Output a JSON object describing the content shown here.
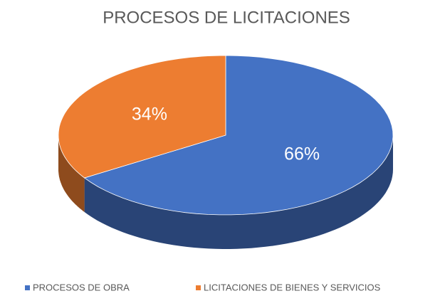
{
  "chart_data": {
    "type": "pie",
    "title": "PROCESOS DE LICITACIONES",
    "categories": [
      "PROCESOS DE OBRA",
      "LICITACIONES DE BIENES Y SERVICIOS"
    ],
    "values": [
      66,
      34
    ],
    "value_labels": [
      "66%",
      "34%"
    ],
    "colors": [
      "#4472c4",
      "#ed7d31"
    ],
    "legend": "bottom"
  }
}
